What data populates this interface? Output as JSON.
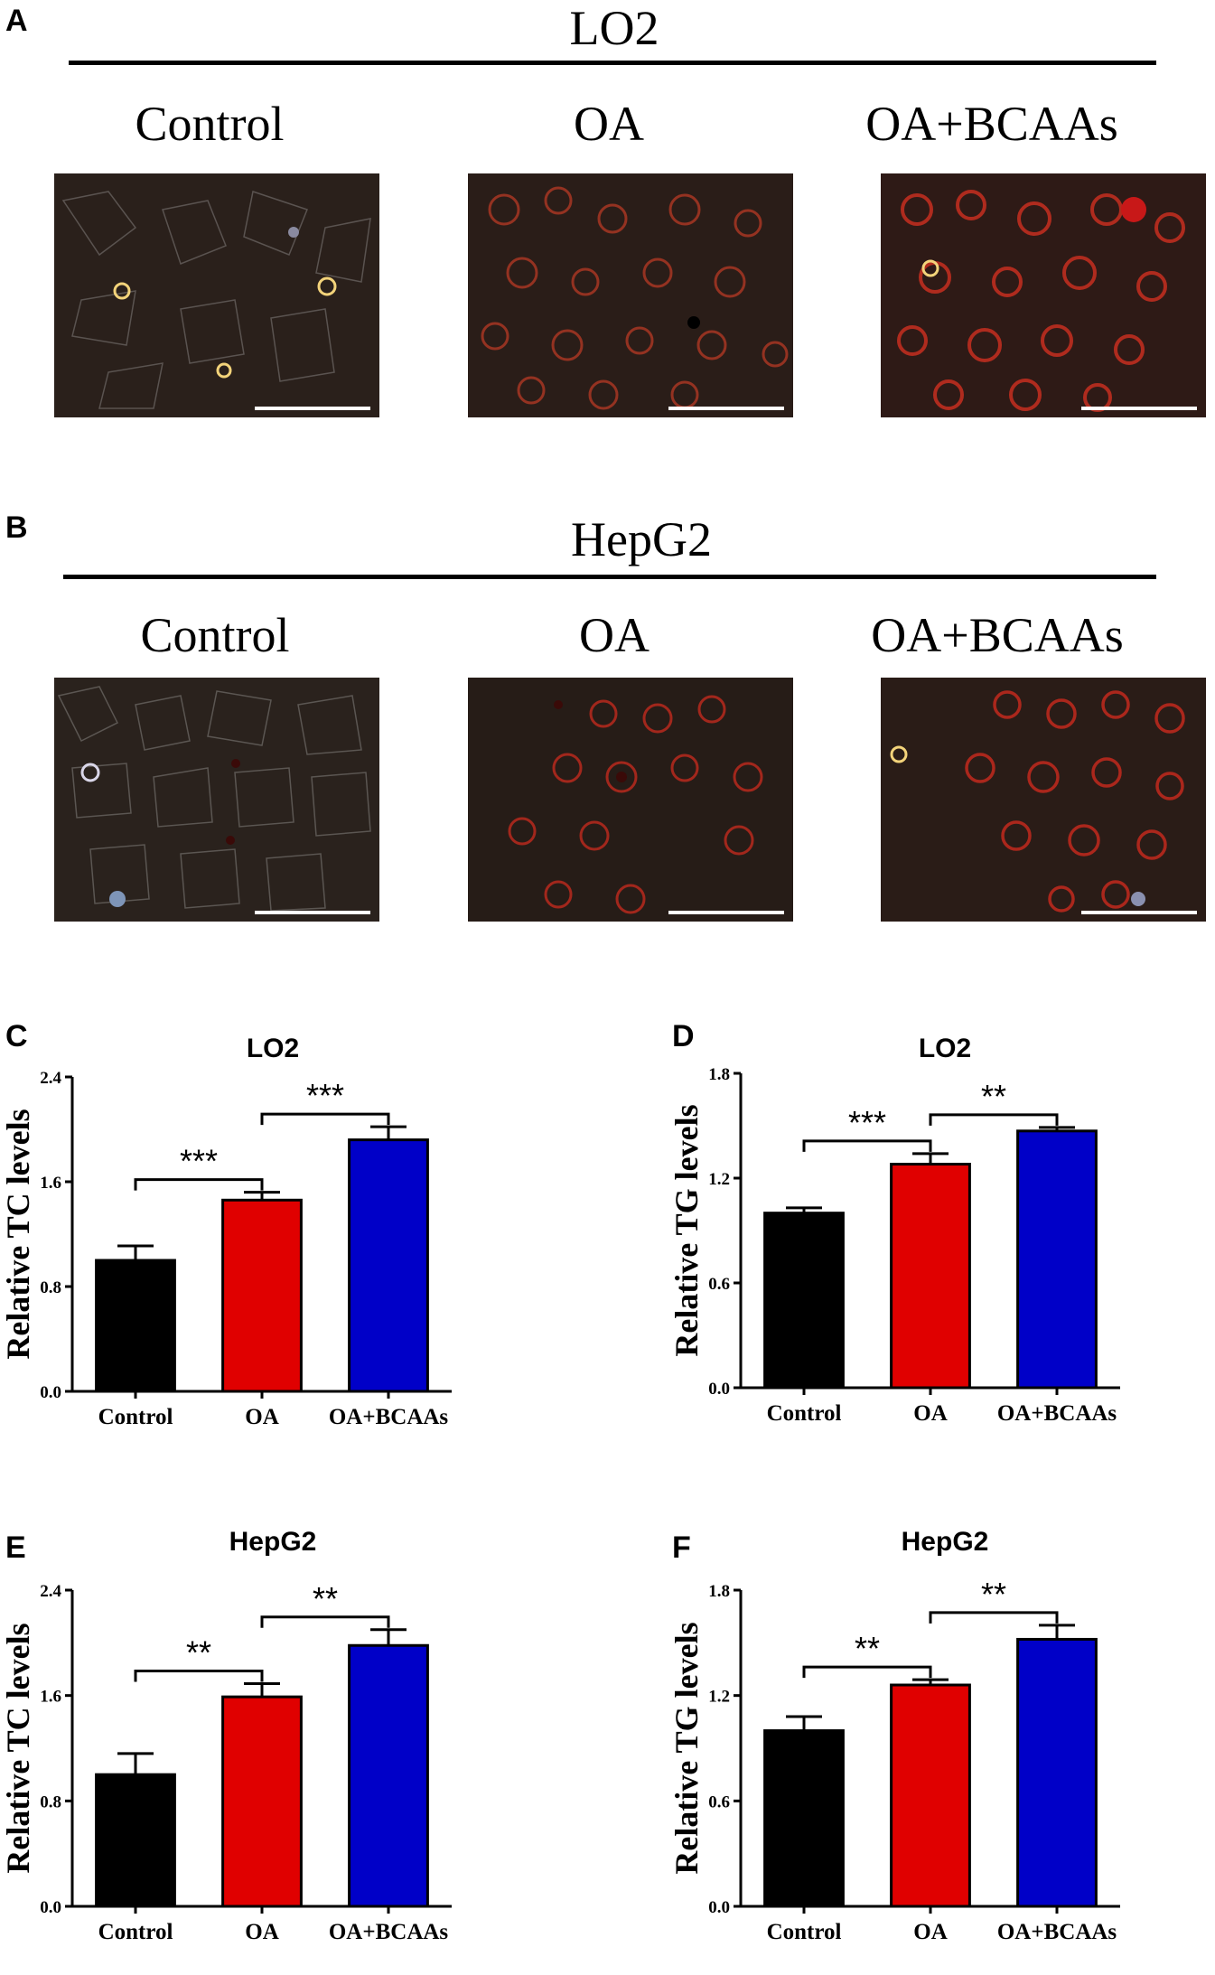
{
  "panels": {
    "A": "A",
    "B": "B",
    "C": "C",
    "D": "D",
    "E": "E",
    "F": "F"
  },
  "sections": [
    {
      "title": "LO2",
      "labels": [
        "Control",
        "OA",
        "OA+BCAAs"
      ]
    },
    {
      "title": "HepG2",
      "labels": [
        "Control",
        "OA",
        "OA+BCAAs"
      ]
    }
  ],
  "colors": {
    "control": "#000000",
    "oa": "#e00000",
    "bcaas": "#0000c8"
  },
  "chart_data": [
    {
      "type": "bar",
      "panel": "C",
      "title": "LO2",
      "ylabel": "Relative TC levels",
      "xlabel": "",
      "categories": [
        "Control",
        "OA",
        "OA+BCAAs"
      ],
      "values": [
        1.0,
        1.46,
        1.92
      ],
      "errors": [
        0.11,
        0.06,
        0.1
      ],
      "ylim": [
        0,
        2.4
      ],
      "yticks": [
        "0.0",
        "0.8",
        "1.6",
        "2.4"
      ],
      "significance": [
        {
          "from": 0,
          "to": 1,
          "label": "***"
        },
        {
          "from": 1,
          "to": 2,
          "label": "***"
        }
      ]
    },
    {
      "type": "bar",
      "panel": "D",
      "title": "LO2",
      "ylabel": "Relative TG levels",
      "xlabel": "",
      "categories": [
        "Control",
        "OA",
        "OA+BCAAs"
      ],
      "values": [
        1.0,
        1.28,
        1.47
      ],
      "errors": [
        0.03,
        0.06,
        0.02
      ],
      "ylim": [
        0,
        1.8
      ],
      "yticks": [
        "0.0",
        "0.6",
        "1.2",
        "1.8"
      ],
      "significance": [
        {
          "from": 0,
          "to": 1,
          "label": "***"
        },
        {
          "from": 1,
          "to": 2,
          "label": "**"
        }
      ]
    },
    {
      "type": "bar",
      "panel": "E",
      "title": "HepG2",
      "ylabel": "Relative TC levels",
      "xlabel": "",
      "categories": [
        "Control",
        "OA",
        "OA+BCAAs"
      ],
      "values": [
        1.0,
        1.59,
        1.98
      ],
      "errors": [
        0.16,
        0.1,
        0.12
      ],
      "ylim": [
        0,
        2.4
      ],
      "yticks": [
        "0.0",
        "0.8",
        "1.6",
        "2.4"
      ],
      "significance": [
        {
          "from": 0,
          "to": 1,
          "label": "**"
        },
        {
          "from": 1,
          "to": 2,
          "label": "**"
        }
      ]
    },
    {
      "type": "bar",
      "panel": "F",
      "title": "HepG2",
      "ylabel": "Relative TG levels",
      "xlabel": "",
      "categories": [
        "Control",
        "OA",
        "OA+BCAAs"
      ],
      "values": [
        1.0,
        1.26,
        1.52
      ],
      "errors": [
        0.08,
        0.03,
        0.08
      ],
      "ylim": [
        0,
        1.8
      ],
      "yticks": [
        "0.0",
        "0.6",
        "1.2",
        "1.8"
      ],
      "significance": [
        {
          "from": 0,
          "to": 1,
          "label": "**"
        },
        {
          "from": 1,
          "to": 2,
          "label": "**"
        }
      ]
    }
  ]
}
